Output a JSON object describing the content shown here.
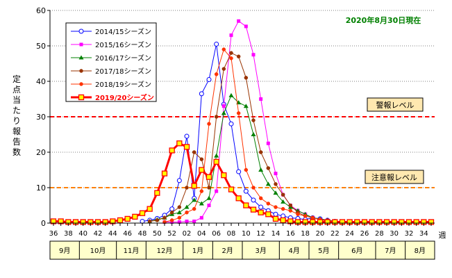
{
  "status_text": "2020年8月30日現在",
  "week_unit": "週",
  "ylabel": "定点当たり報告数",
  "colors": {
    "warning_line": "#ff0000",
    "advisory_line": "#ff8000",
    "annotation_bg": "#ffe8b0",
    "month_bar_bg": "#ffffcc"
  },
  "chart_data": {
    "type": "line",
    "ylim": [
      0,
      60
    ],
    "yticks": [
      0,
      10,
      20,
      30,
      40,
      50,
      60
    ],
    "x_tick_labels": [
      "36",
      "38",
      "40",
      "42",
      "44",
      "46",
      "48",
      "50",
      "52",
      "02",
      "04",
      "06",
      "08",
      "10",
      "12",
      "14",
      "16",
      "18",
      "20",
      "22",
      "24",
      "26",
      "28",
      "30",
      "32",
      "34"
    ],
    "months": [
      "9月",
      "10月",
      "11月",
      "12月",
      "1月",
      "2月",
      "3月",
      "4月",
      "5月",
      "6月",
      "7月",
      "8月"
    ],
    "month_week_counts": [
      4,
      5,
      4,
      5,
      4,
      4,
      5,
      4,
      4,
      5,
      4,
      5
    ],
    "reference_lines": [
      {
        "label": "警報レベル",
        "value": 30,
        "color": "#ff0000"
      },
      {
        "label": "注意報レベル",
        "value": 10,
        "color": "#ff8000"
      }
    ],
    "series": [
      {
        "name": "2014/15シーズン",
        "color": "#0000ff",
        "marker": "circle-open",
        "bold": false,
        "values": [
          null,
          null,
          null,
          null,
          null,
          null,
          null,
          null,
          null,
          null,
          null,
          null,
          0.5,
          0.8,
          1.3,
          2.2,
          4.0,
          12.0,
          24.5,
          7.0,
          36.5,
          40.5,
          50.5,
          33.5,
          28.0,
          14.5,
          9.0,
          6.5,
          4.5,
          3.5,
          2.5,
          2.0,
          1.5,
          1.3,
          1.0,
          1.5,
          1.2,
          0.8,
          0.5,
          0.3,
          null,
          null,
          null,
          null,
          null,
          null,
          null,
          null,
          null,
          null,
          null,
          null
        ]
      },
      {
        "name": "2015/16シーズン",
        "color": "#ff00ff",
        "marker": "square",
        "bold": false,
        "values": [
          null,
          null,
          null,
          null,
          null,
          null,
          null,
          null,
          null,
          null,
          null,
          null,
          null,
          null,
          null,
          0.3,
          0.3,
          0.3,
          0.5,
          0.5,
          1.5,
          5.0,
          9.0,
          33.0,
          53.0,
          57.0,
          55.5,
          47.5,
          35.0,
          22.5,
          14.0,
          8.0,
          5.0,
          3.5,
          2.5,
          1.5,
          1.0,
          0.8,
          0.5,
          0.3,
          0.3,
          null,
          null,
          null,
          null,
          null,
          null,
          null,
          null,
          null,
          null,
          null
        ]
      },
      {
        "name": "2016/17シーズン",
        "color": "#008000",
        "marker": "triangle",
        "bold": false,
        "values": [
          null,
          null,
          null,
          null,
          null,
          null,
          null,
          null,
          null,
          null,
          null,
          null,
          null,
          0.5,
          1.0,
          1.5,
          2.5,
          3.0,
          4.5,
          6.5,
          5.5,
          7.0,
          19.0,
          31.0,
          36.0,
          34.0,
          33.0,
          25.0,
          15.0,
          11.0,
          8.5,
          6.0,
          4.5,
          3.5,
          2.5,
          1.5,
          1.2,
          0.8,
          0.5,
          0.3,
          null,
          null,
          null,
          null,
          null,
          null,
          null,
          null,
          null,
          null,
          null,
          null
        ]
      },
      {
        "name": "2017/18シーズン",
        "color": "#993300",
        "marker": "circle",
        "bold": false,
        "values": [
          null,
          null,
          null,
          null,
          null,
          null,
          null,
          null,
          null,
          null,
          null,
          null,
          null,
          0.5,
          0.8,
          1.5,
          3.0,
          4.5,
          10.0,
          20.0,
          18.0,
          10.0,
          30.0,
          43.5,
          48.0,
          47.0,
          41.0,
          29.0,
          20.0,
          15.5,
          11.0,
          8.0,
          5.0,
          3.0,
          2.0,
          1.5,
          1.0,
          0.8,
          0.5,
          0.3,
          0.3,
          null,
          null,
          null,
          null,
          null,
          null,
          null,
          null,
          null,
          null,
          null
        ]
      },
      {
        "name": "2018/19シーズン",
        "color": "#ff3300",
        "marker": "circle",
        "bold": false,
        "values": [
          null,
          null,
          null,
          null,
          null,
          null,
          null,
          null,
          null,
          null,
          null,
          null,
          null,
          null,
          null,
          0.3,
          0.8,
          1.5,
          3.0,
          4.0,
          9.0,
          28.0,
          42.0,
          49.0,
          46.5,
          31.0,
          15.0,
          10.0,
          7.0,
          5.5,
          4.5,
          4.0,
          3.5,
          2.5,
          2.0,
          1.5,
          1.0,
          0.5,
          0.3,
          null,
          null,
          null,
          null,
          null,
          null,
          null,
          null,
          null,
          null,
          null,
          null,
          null
        ]
      },
      {
        "name": "2019/20シーズン",
        "color": "#ff0000",
        "marker": "square-yellow",
        "bold": true,
        "values": [
          0.5,
          0.5,
          0.3,
          0.3,
          0.3,
          0.3,
          0.3,
          0.3,
          0.5,
          0.8,
          1.2,
          1.8,
          2.8,
          4.0,
          8.5,
          14.0,
          20.5,
          22.5,
          21.5,
          10.5,
          15.0,
          13.0,
          17.3,
          13.5,
          9.5,
          7.0,
          5.0,
          3.8,
          3.0,
          2.5,
          1.2,
          0.8,
          0.5,
          0.3,
          0.3,
          0.3,
          0.3,
          0.3,
          0.3,
          0.3,
          0.3,
          0.3,
          0.3,
          0.3,
          0.3,
          0.3,
          0.3,
          0.3,
          0.3,
          0.3,
          0.3,
          0.3
        ]
      }
    ]
  }
}
